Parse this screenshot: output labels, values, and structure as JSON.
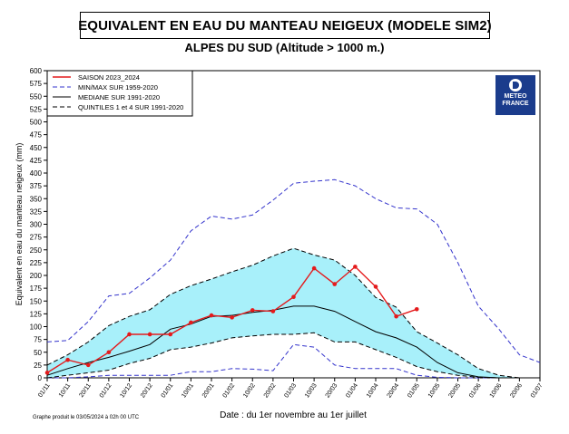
{
  "chart_data": {
    "type": "line",
    "title": "EQUIVALENT EN EAU DU MANTEAU NEIGEUX (MODELE SIM2)",
    "subtitle": "ALPES DU SUD (Altitude > 1000 m.)",
    "xlabel": "Date : du 1er novembre au 1er juillet",
    "ylabel": "Equivalent en eau du manteau neigeux (mm)",
    "ylim": [
      0,
      600
    ],
    "yticks": [
      0,
      25,
      50,
      75,
      100,
      125,
      150,
      175,
      200,
      225,
      250,
      275,
      300,
      325,
      350,
      375,
      400,
      425,
      450,
      475,
      500,
      525,
      550,
      575,
      600
    ],
    "categories": [
      "01/11",
      "10/11",
      "20/11",
      "01/12",
      "10/12",
      "20/12",
      "01/01",
      "10/01",
      "20/01",
      "01/02",
      "10/02",
      "20/02",
      "01/03",
      "10/03",
      "20/03",
      "01/04",
      "10/04",
      "20/04",
      "01/05",
      "10/05",
      "20/05",
      "01/06",
      "10/06",
      "20/06",
      "01/07"
    ],
    "grid": false,
    "legend_position": "top-left",
    "colors": {
      "saison": "#e41a1c",
      "minmax": "#3333cc",
      "mediane": "#000000",
      "quintiles": "#000000",
      "band_fill": "#a8f0fa"
    },
    "series": [
      {
        "name": "SAISON 2023_2024",
        "style": "saison",
        "values": [
          10,
          35,
          25,
          50,
          85,
          85,
          85,
          108,
          122,
          118,
          132,
          130,
          158,
          214,
          183,
          217,
          178,
          120,
          134,
          null,
          null,
          null,
          null,
          null,
          null
        ]
      },
      {
        "name": "MIN/MAX SUR 1959-2020",
        "style": "minmax",
        "values": [
          70,
          73,
          110,
          160,
          165,
          195,
          230,
          287,
          316,
          310,
          318,
          347,
          380,
          384,
          387,
          375,
          350,
          332,
          330,
          300,
          225,
          140,
          95,
          45,
          30
        ]
      },
      {
        "name": "",
        "style": "minmax",
        "values": [
          0,
          0,
          2,
          5,
          5,
          5,
          5,
          12,
          12,
          18,
          17,
          14,
          65,
          60,
          25,
          18,
          18,
          18,
          5,
          1,
          0,
          0,
          0,
          0,
          0
        ]
      },
      {
        "name": "MEDIANE SUR 1991-2020",
        "style": "mediane",
        "values": [
          5,
          18,
          30,
          40,
          52,
          65,
          95,
          105,
          120,
          122,
          128,
          132,
          140,
          140,
          130,
          110,
          90,
          78,
          60,
          30,
          10,
          2,
          0,
          0,
          0
        ]
      },
      {
        "name": "QUINTILES 1 et 4 SUR 1991-2020",
        "style": "quintiles",
        "values": [
          25,
          45,
          70,
          102,
          120,
          133,
          163,
          180,
          193,
          207,
          220,
          238,
          253,
          240,
          230,
          200,
          157,
          138,
          90,
          68,
          45,
          18,
          5,
          0,
          0
        ]
      },
      {
        "name": "",
        "style": "quintiles",
        "values": [
          0,
          5,
          10,
          15,
          28,
          38,
          55,
          60,
          68,
          78,
          82,
          85,
          85,
          88,
          70,
          70,
          55,
          40,
          22,
          12,
          5,
          1,
          0,
          0,
          0
        ]
      }
    ]
  },
  "logo": {
    "line1": "METEO",
    "line2": "FRANCE"
  },
  "footer_note": "Graphe produit le 03/05/2024 à 02h 00 UTC"
}
